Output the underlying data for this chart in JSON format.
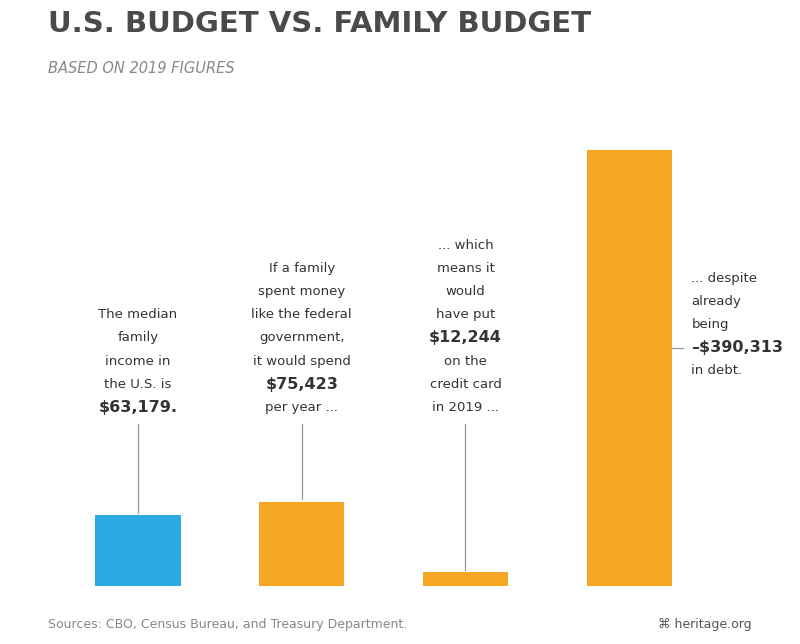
{
  "title": "U.S. BUDGET VS. FAMILY BUDGET",
  "subtitle": "BASED ON 2019 FIGURES",
  "values": [
    63179,
    75423,
    12244,
    390313
  ],
  "bar_colors": [
    "#29ABE2",
    "#F5A623",
    "#F5A623",
    "#F5A623"
  ],
  "bar_positions": [
    0,
    1,
    2,
    3
  ],
  "bar_width": 0.52,
  "ylim_max": 415000,
  "source_text": "Sources: CBO, Census Bureau, and Treasury Department.",
  "heritage_text": "⌘ heritage.org",
  "bg_color": "#FFFFFF",
  "title_color": "#4A4A4A",
  "subtitle_color": "#888888",
  "annotation_color": "#333333",
  "source_color": "#888888",
  "line_color": "#999999",
  "ann_data": [
    {
      "lines": [
        "The median",
        "family",
        "income in",
        "the U.S. is",
        "$63,179."
      ],
      "bold_idx": 4,
      "bar_idx": 0
    },
    {
      "lines": [
        "If a family",
        "spent money",
        "like the federal",
        "government,",
        "it would spend",
        "$75,423",
        "per year ..."
      ],
      "bold_idx": 5,
      "bar_idx": 1
    },
    {
      "lines": [
        "... which",
        "means it",
        "would",
        "have put",
        "$12,244",
        "on the",
        "credit card",
        "in 2019 ..."
      ],
      "bold_idx": 4,
      "bar_idx": 2
    },
    {
      "lines": [
        "... despite",
        "already",
        "being",
        "–$390,313",
        "in debt."
      ],
      "bold_idx": 3,
      "bar_idx": 3
    }
  ]
}
